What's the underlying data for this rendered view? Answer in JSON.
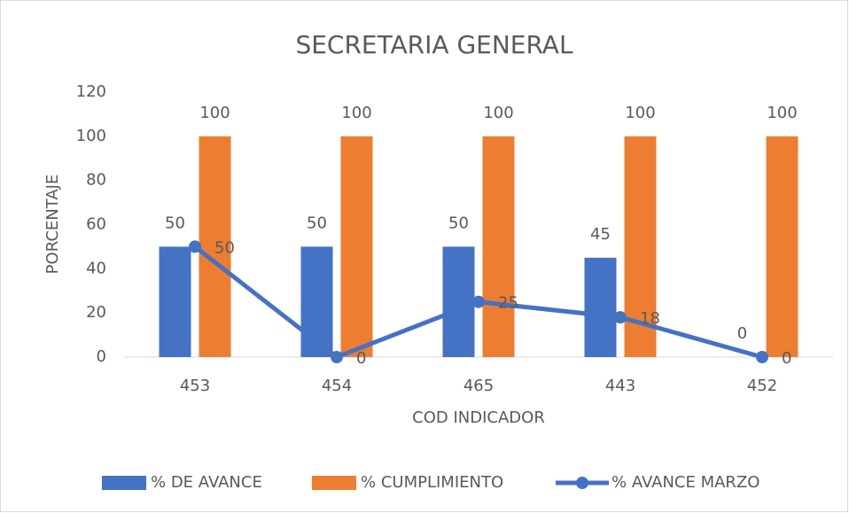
{
  "chart_data": {
    "type": "bar",
    "title": "SECRETARIA GENERAL",
    "x_label": "COD INDICADOR",
    "y_label": "PORCENTAJE",
    "categories": [
      "453",
      "454",
      "465",
      "443",
      "452"
    ],
    "series": [
      {
        "name": "% DE AVANCE",
        "type": "bar",
        "color": "#4472c4",
        "values": [
          50,
          50,
          50,
          45,
          0
        ]
      },
      {
        "name": "% CUMPLIMIENTO",
        "type": "bar",
        "color": "#ed7d31",
        "values": [
          100,
          100,
          100,
          100,
          100
        ]
      },
      {
        "name": "% AVANCE MARZO",
        "type": "line",
        "color": "#4472c4",
        "values": [
          50,
          0,
          25,
          18,
          0
        ]
      }
    ],
    "ylim": [
      0,
      120
    ],
    "yticks": [
      0,
      20,
      40,
      60,
      80,
      100,
      120
    ],
    "legend": "bottom"
  }
}
